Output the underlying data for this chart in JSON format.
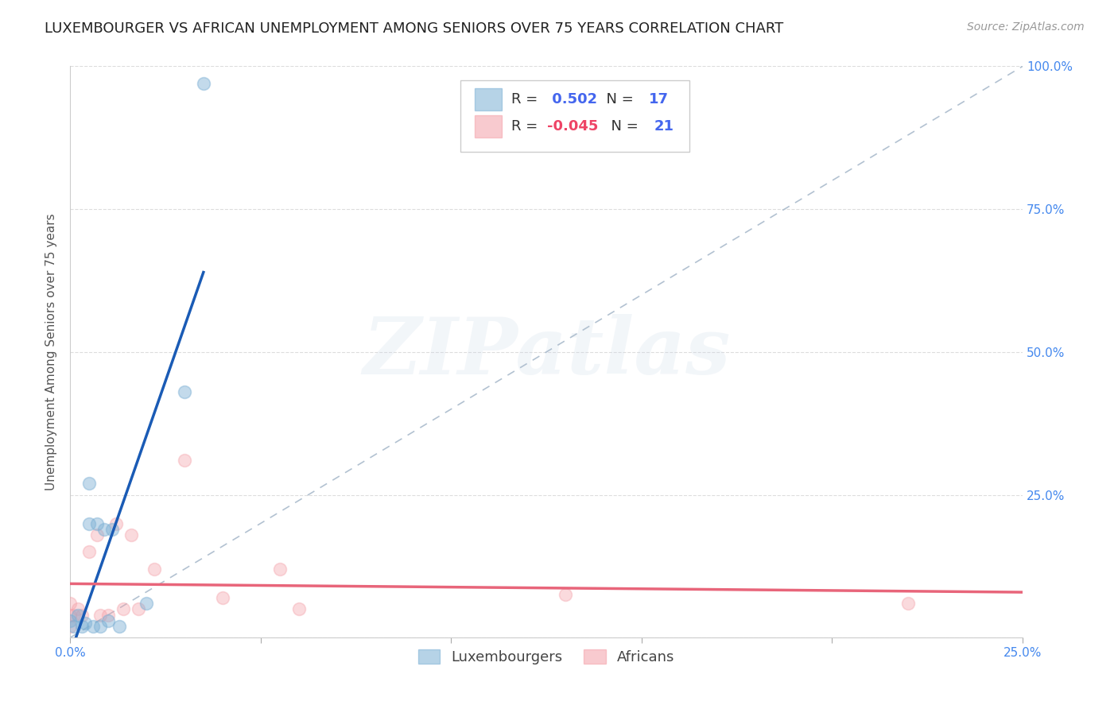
{
  "title": "LUXEMBOURGER VS AFRICAN UNEMPLOYMENT AMONG SENIORS OVER 75 YEARS CORRELATION CHART",
  "source": "Source: ZipAtlas.com",
  "ylabel": "Unemployment Among Seniors over 75 years",
  "xlim": [
    0.0,
    0.25
  ],
  "ylim": [
    0.0,
    1.0
  ],
  "xticks": [
    0.0,
    0.05,
    0.1,
    0.15,
    0.2,
    0.25
  ],
  "yticks": [
    0.0,
    0.25,
    0.5,
    0.75,
    1.0
  ],
  "lux_color": "#7BAFD4",
  "afr_color": "#F4A0A8",
  "lux_line_color": "#1A5BB5",
  "afr_line_color": "#E8657A",
  "diag_line_color": "#AABBCC",
  "lux_R": 0.502,
  "lux_N": 17,
  "afr_R": -0.045,
  "afr_N": 21,
  "lux_x": [
    0.0,
    0.001,
    0.002,
    0.003,
    0.004,
    0.005,
    0.005,
    0.006,
    0.007,
    0.008,
    0.009,
    0.01,
    0.011,
    0.013,
    0.02,
    0.03,
    0.035
  ],
  "lux_y": [
    0.03,
    0.02,
    0.04,
    0.02,
    0.025,
    0.2,
    0.27,
    0.02,
    0.2,
    0.02,
    0.19,
    0.03,
    0.19,
    0.02,
    0.06,
    0.43,
    0.97
  ],
  "afr_x": [
    0.0,
    0.0,
    0.0,
    0.001,
    0.002,
    0.003,
    0.005,
    0.007,
    0.008,
    0.01,
    0.012,
    0.014,
    0.016,
    0.018,
    0.022,
    0.03,
    0.04,
    0.055,
    0.06,
    0.13,
    0.22
  ],
  "afr_y": [
    0.02,
    0.04,
    0.06,
    0.04,
    0.05,
    0.04,
    0.15,
    0.18,
    0.04,
    0.04,
    0.2,
    0.05,
    0.18,
    0.05,
    0.12,
    0.31,
    0.07,
    0.12,
    0.05,
    0.075,
    0.06
  ],
  "title_fontsize": 13,
  "source_fontsize": 10,
  "label_fontsize": 11,
  "tick_fontsize": 11,
  "legend_fontsize": 13,
  "watermark_text": "ZIPatlas",
  "marker_size": 130,
  "lux_marker_alpha": 0.45,
  "afr_marker_alpha": 0.38
}
